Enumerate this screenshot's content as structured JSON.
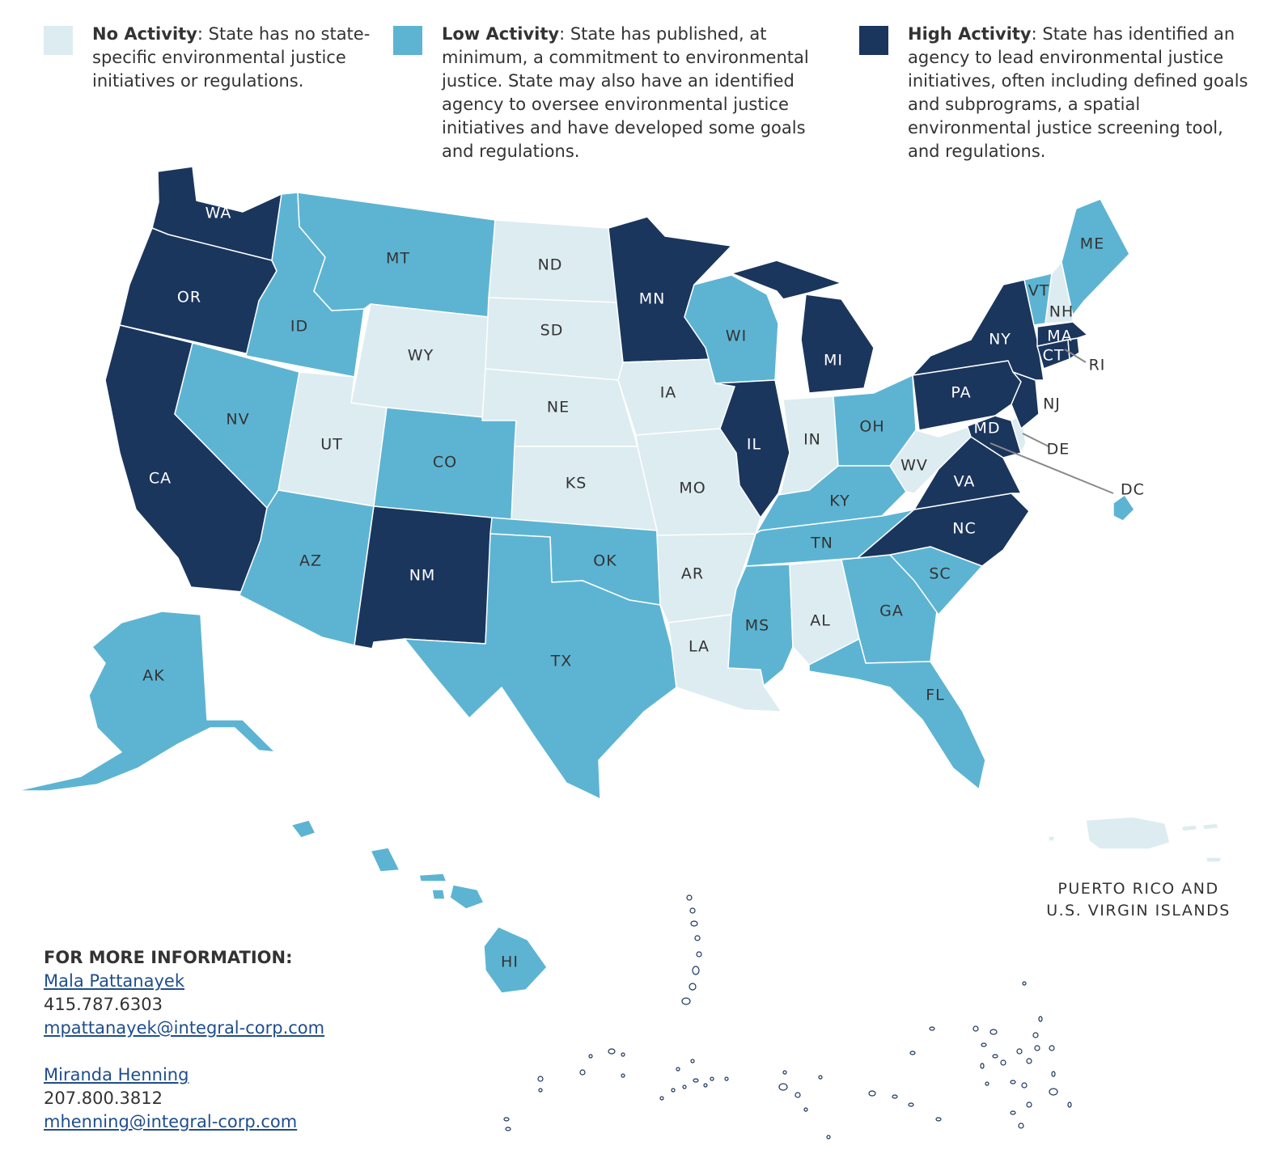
{
  "colors": {
    "no_activity": "#dcecf1",
    "low_activity": "#5db4d2",
    "high_activity": "#1b365d"
  },
  "legend": [
    {
      "key": "none",
      "title": "No Activity",
      "description": ": State has no state-specific environmental justice initiatives or regulations."
    },
    {
      "key": "low",
      "title": "Low Activity",
      "description": ": State has published, at minimum, a commitment to environmental justice. State may also have an identified agency to oversee environmental justice initiatives and have developed some goals and regulations."
    },
    {
      "key": "high",
      "title": "High Activity",
      "description": ": State has identified an agency to lead environmental justice initiatives, often including defined goals and subprograms, a spatial environmental justice screening tool, and regulations."
    }
  ],
  "states": {
    "WA": "high",
    "OR": "high",
    "CA": "high",
    "MN": "high",
    "MI": "high",
    "IL": "high",
    "NY": "high",
    "PA": "high",
    "NJ": "high",
    "MA": "high",
    "CT": "high",
    "RI": "high",
    "MD": "high",
    "VA": "high",
    "NC": "high",
    "NM": "high",
    "MT": "low",
    "ID": "low",
    "NV": "low",
    "AZ": "low",
    "CO": "low",
    "OK": "low",
    "TX": "low",
    "WI": "low",
    "OH": "low",
    "KY": "low",
    "TN": "low",
    "MS": "low",
    "GA": "low",
    "SC": "low",
    "FL": "low",
    "VT": "low",
    "ME": "low",
    "AK": "low",
    "HI": "low",
    "DC": "low",
    "ND": "none",
    "SD": "none",
    "WY": "none",
    "UT": "none",
    "NE": "none",
    "KS": "none",
    "IA": "none",
    "MO": "none",
    "AR": "none",
    "LA": "none",
    "IN": "none",
    "AL": "none",
    "WV": "none",
    "NH": "none",
    "DE": "none",
    "PR": "none"
  },
  "territories_caption": [
    "PUERTO RICO AND",
    "U.S. VIRGIN ISLANDS"
  ],
  "contact": {
    "heading": "FOR MORE INFORMATION:",
    "people": [
      {
        "name": "Mala Pattanayek",
        "phone": "415.787.6303",
        "email": "mpattanayek@integral-corp.com"
      },
      {
        "name": "Miranda Henning",
        "phone": "207.800.3812",
        "email": "mhenning@integral-corp.com"
      }
    ]
  }
}
